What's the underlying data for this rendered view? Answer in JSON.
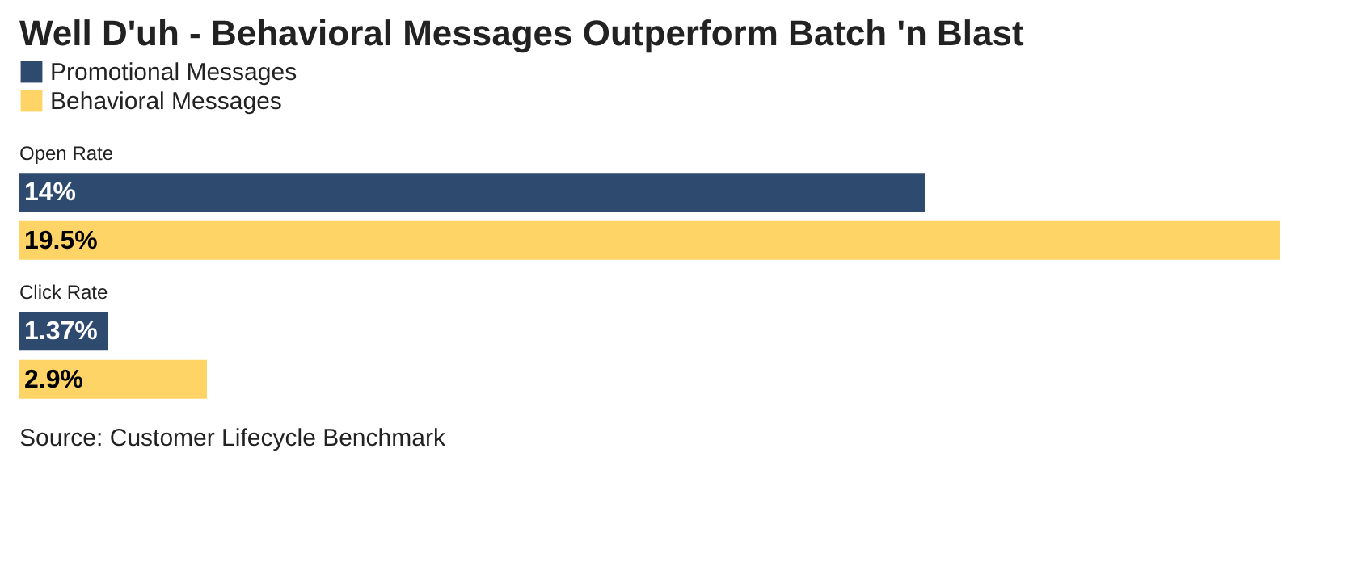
{
  "chart_data": {
    "type": "bar",
    "orientation": "horizontal",
    "title": "Well D'uh - Behavioral Messages Outperform Batch 'n Blast",
    "categories": [
      "Open Rate",
      "Click Rate"
    ],
    "series": [
      {
        "name": "Promotional Messages",
        "color": "#2e4a6e",
        "values": [
          14,
          1.37
        ],
        "value_labels": [
          "14%",
          "1.37%"
        ]
      },
      {
        "name": "Behavioral Messages",
        "color": "#ffd466",
        "values": [
          19.5,
          2.9
        ],
        "value_labels": [
          "19.5%",
          "2.9%"
        ]
      }
    ],
    "legend": "top left",
    "annotations": [
      "Source: Customer Lifecycle Benchmark"
    ]
  }
}
